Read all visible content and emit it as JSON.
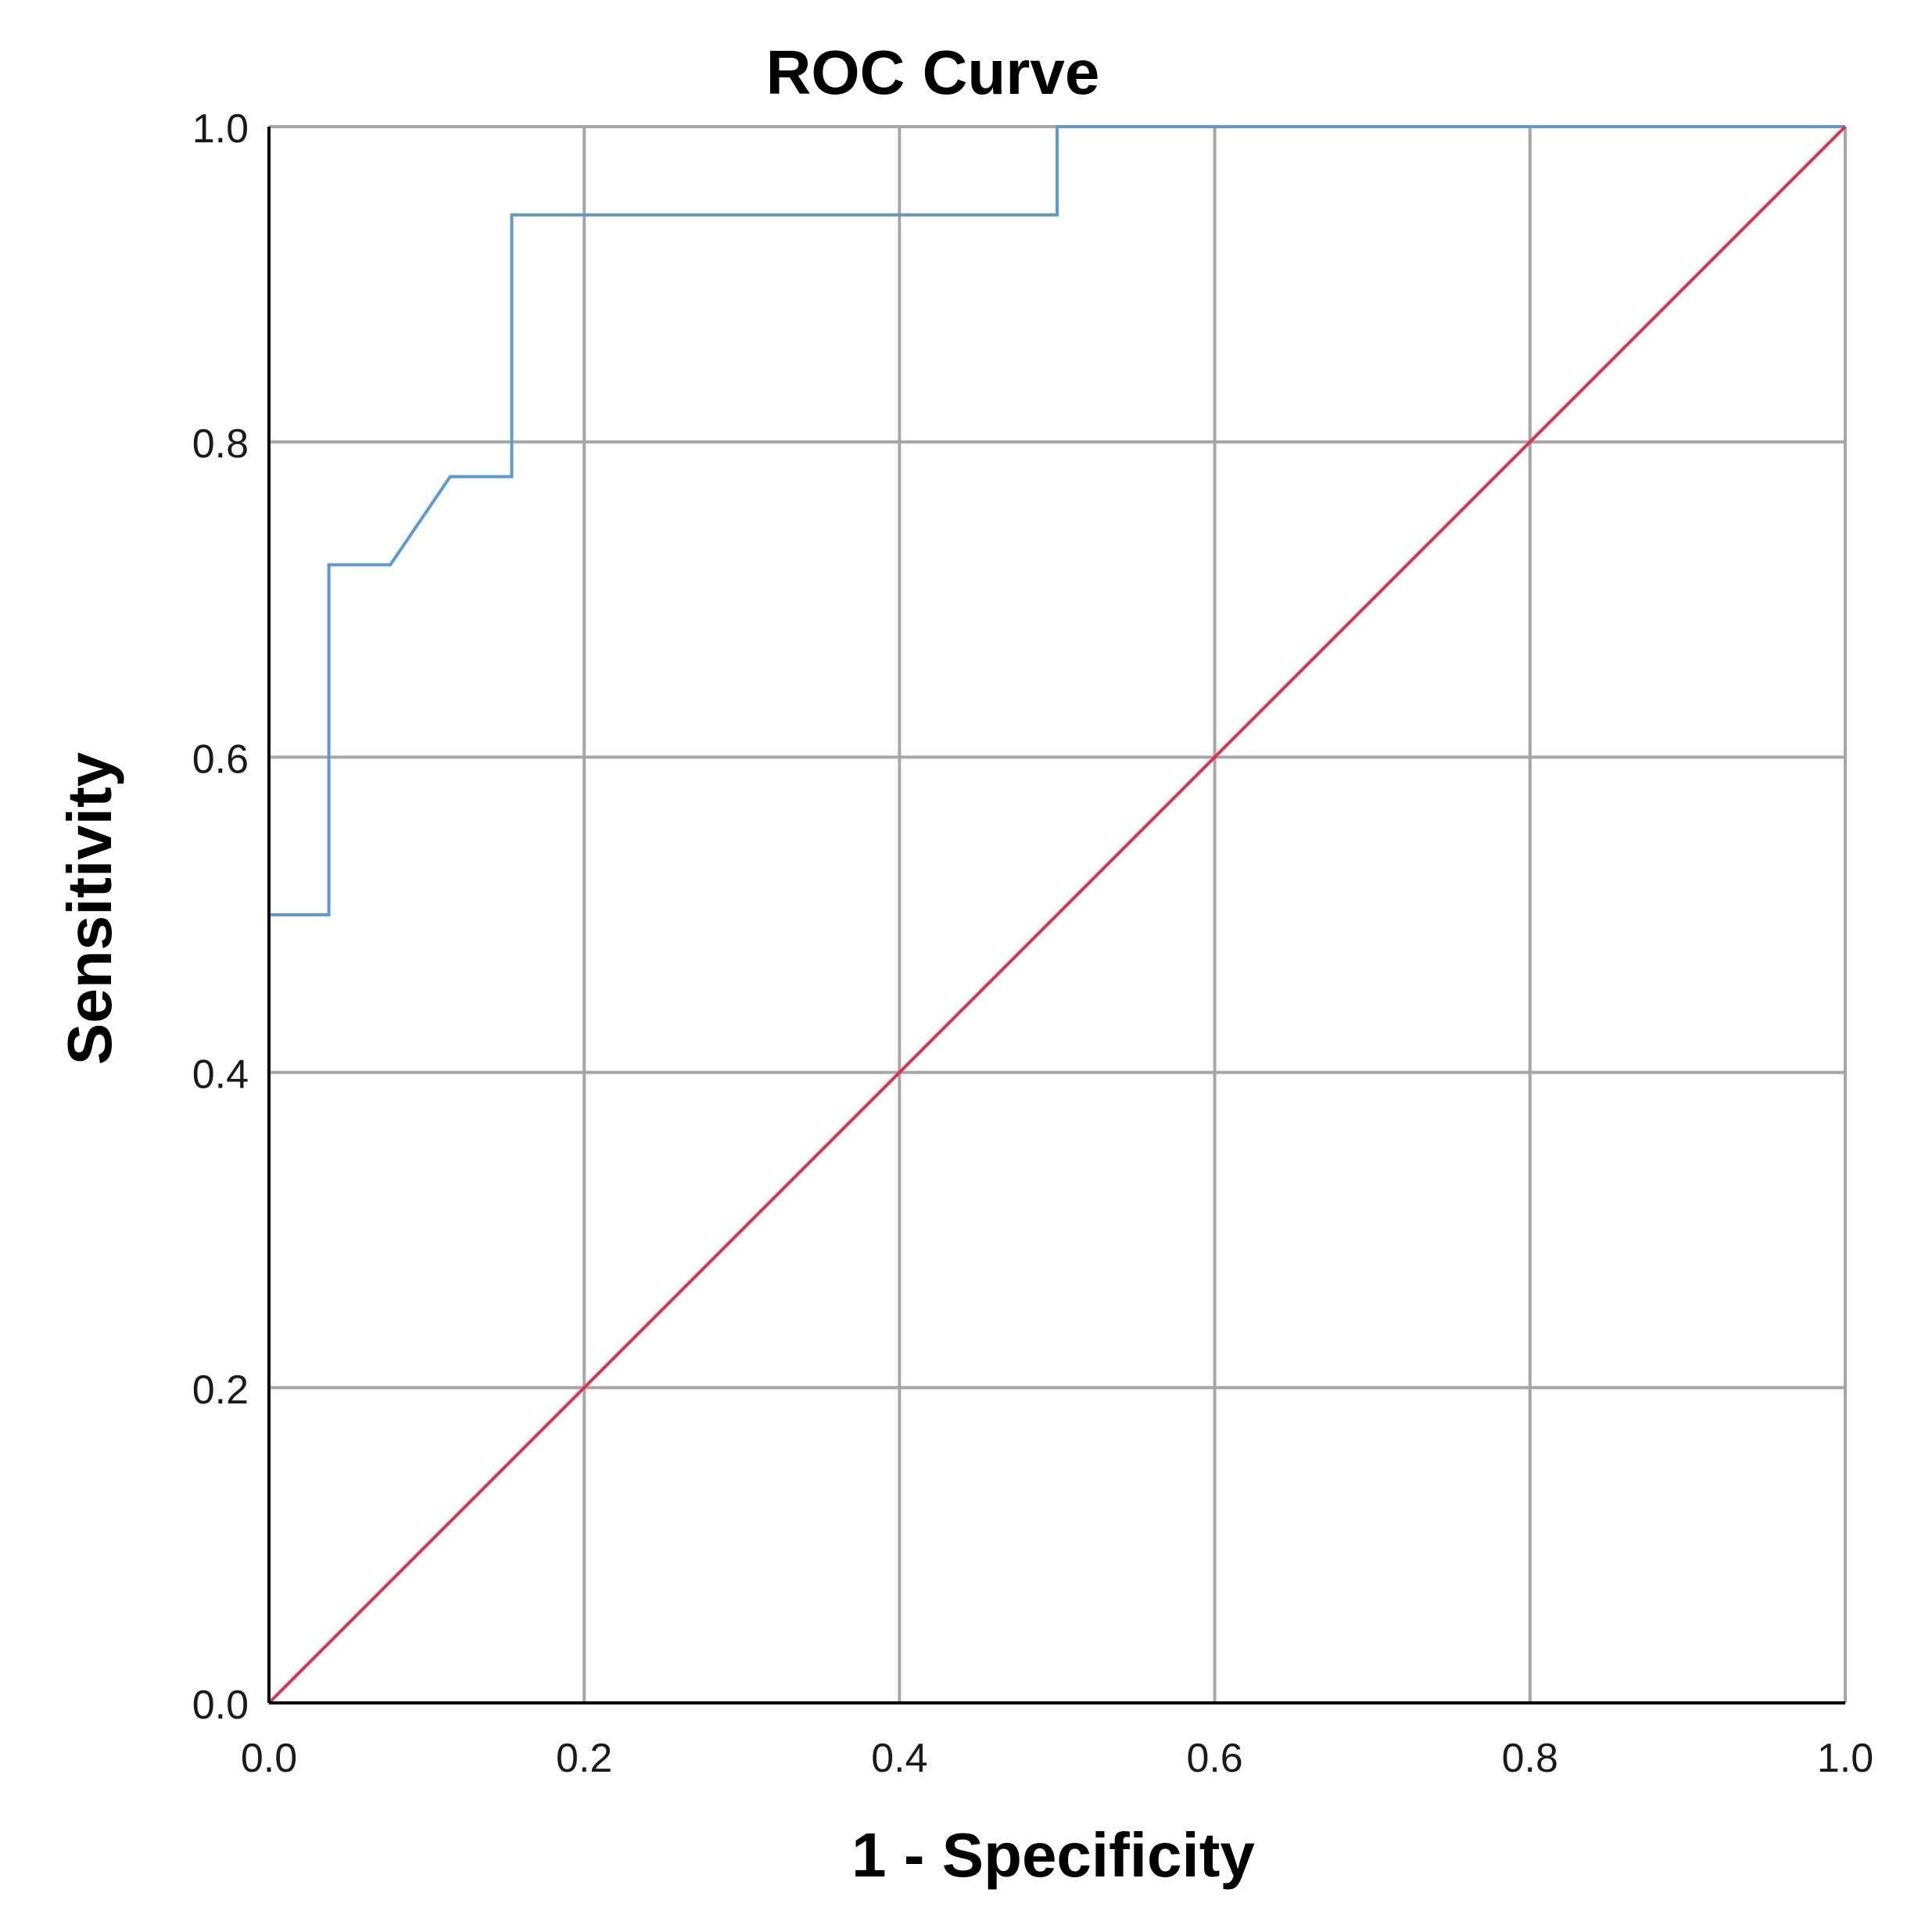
{
  "chart_data": {
    "type": "line",
    "title": "ROC Curve",
    "xlabel": "1 - Specificity",
    "ylabel": "Sensitivity",
    "xlim": [
      0.0,
      1.0
    ],
    "ylim": [
      0.0,
      1.0
    ],
    "x_ticks": [
      "0.0",
      "0.2",
      "0.4",
      "0.6",
      "0.8",
      "1.0"
    ],
    "y_ticks": [
      "0.0",
      "0.2",
      "0.4",
      "0.6",
      "0.8",
      "1.0"
    ],
    "grid": true,
    "legend": "none",
    "series": [
      {
        "color": "#5b9bd5",
        "points": [
          [
            0.0,
            0.0
          ],
          [
            0.0,
            0.5
          ],
          [
            0.038,
            0.5
          ],
          [
            0.038,
            0.722
          ],
          [
            0.077,
            0.722
          ],
          [
            0.115,
            0.778
          ],
          [
            0.154,
            0.778
          ],
          [
            0.154,
            0.944
          ],
          [
            0.5,
            0.944
          ],
          [
            0.5,
            1.0
          ],
          [
            1.0,
            1.0
          ]
        ]
      },
      {
        "color": "#e0314b",
        "points": [
          [
            0.0,
            0.0
          ],
          [
            1.0,
            1.0
          ]
        ]
      }
    ]
  },
  "colors": {
    "grid": "#a6a6a6",
    "axis": "#000000",
    "background": "#ffffff"
  }
}
